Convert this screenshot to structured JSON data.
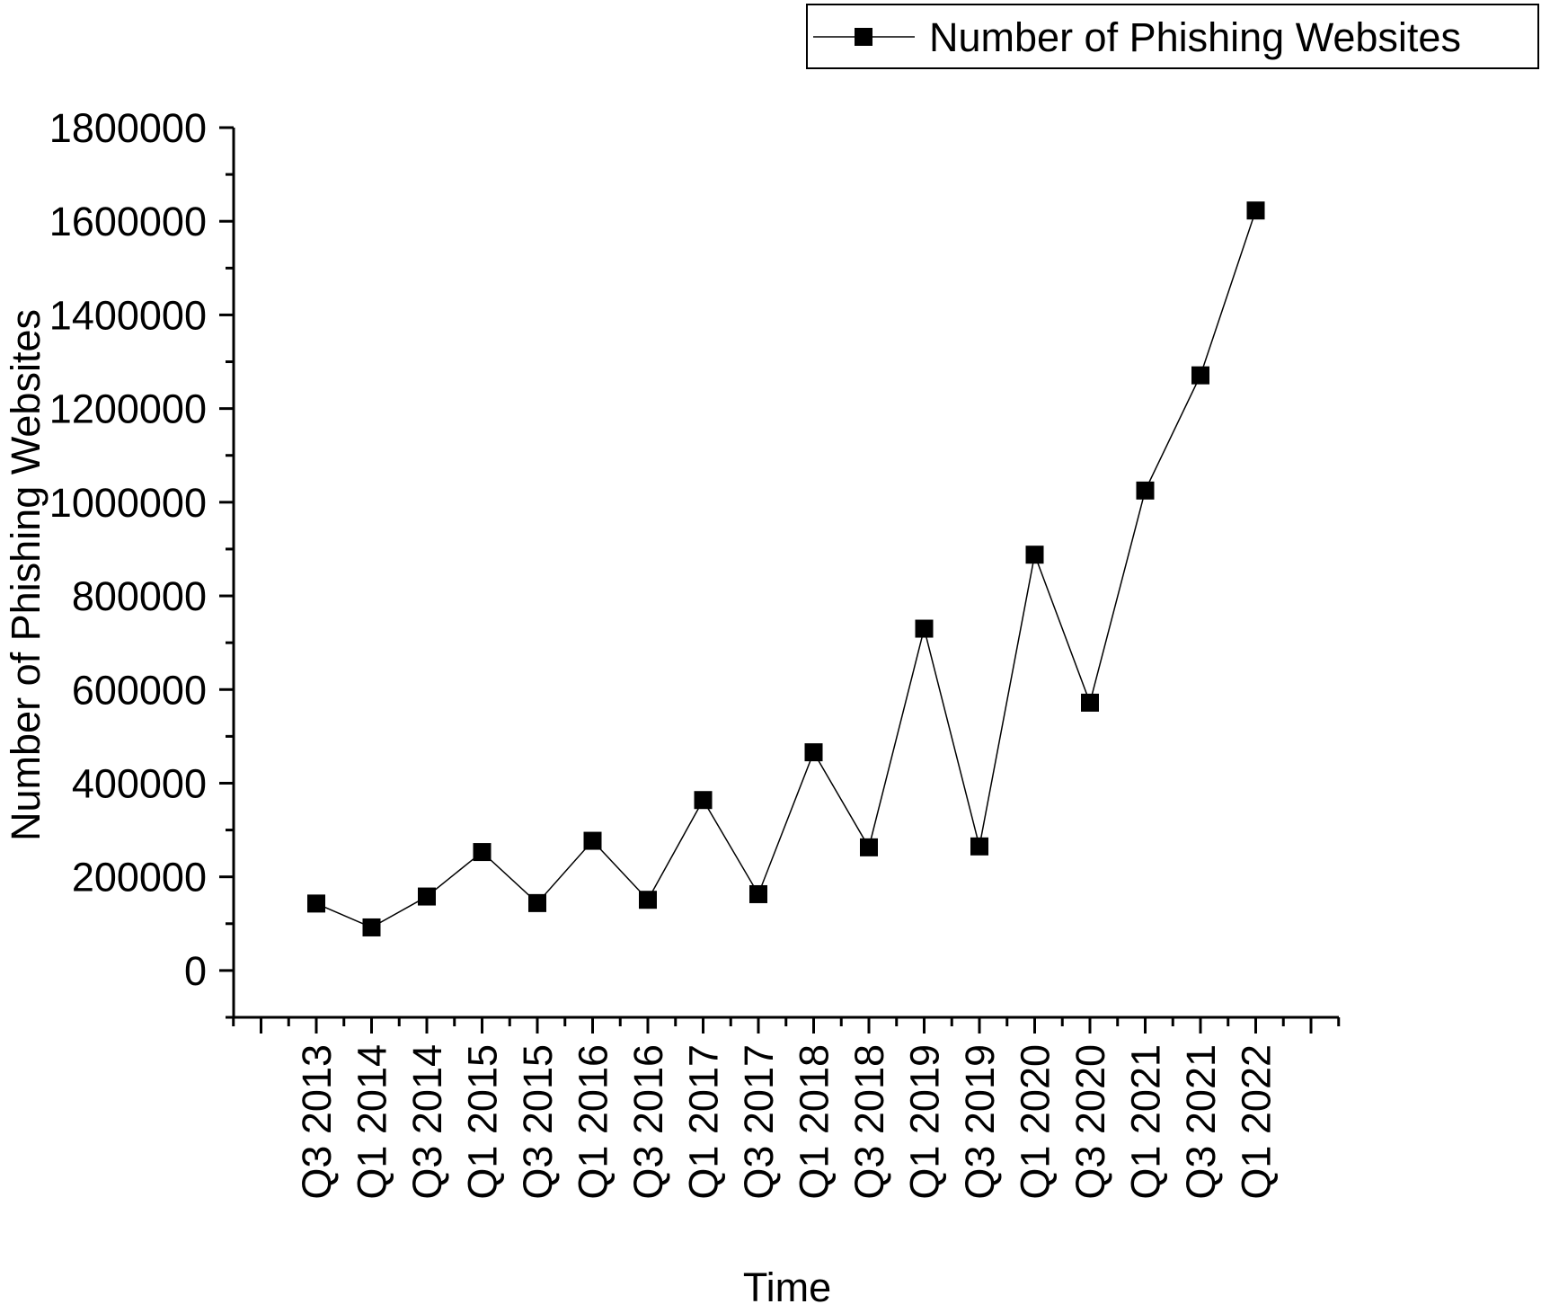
{
  "chart_data": {
    "type": "line",
    "title": "",
    "xlabel": "Time",
    "ylabel": "Number of Phishing Websites",
    "ylim": [
      -100000,
      1800000
    ],
    "yticks": [
      0,
      200000,
      400000,
      600000,
      800000,
      1000000,
      1200000,
      1400000,
      1600000,
      1800000
    ],
    "ytick_labels": [
      "0",
      "200000",
      "400000",
      "600000",
      "800000",
      "1000000",
      "1200000",
      "1400000",
      "1600000",
      "1800000"
    ],
    "legend_position": "top-right",
    "grid": false,
    "categories": [
      "Q3 2013",
      "Q1 2014",
      "Q3 2014",
      "Q1 2015",
      "Q3 2015",
      "Q1 2016",
      "Q3 2016",
      "Q1 2017",
      "Q3 2017",
      "Q1 2018",
      "Q3 2018",
      "Q1 2019",
      "Q3 2019",
      "Q1 2020",
      "Q3 2020",
      "Q1 2021",
      "Q3 2021",
      "Q1 2022"
    ],
    "series": [
      {
        "name": "Number of Phishing Websites",
        "color": "#000000",
        "marker": "square",
        "values": [
          143000,
          92000,
          158000,
          253000,
          144000,
          277000,
          151000,
          364000,
          163000,
          466000,
          263000,
          730000,
          265000,
          888000,
          572000,
          1025000,
          1271000,
          1623000
        ]
      }
    ]
  }
}
